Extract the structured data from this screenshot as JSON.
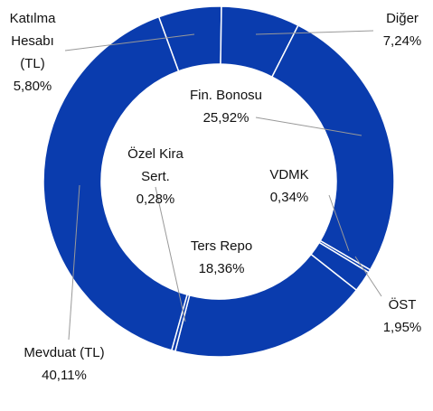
{
  "chart_data": {
    "type": "donut",
    "categories": [
      "Katılma Hesabı (TL)",
      "Diğer",
      "Fin. Bonosu",
      "Özel Kira Sert.",
      "ÖST",
      "Ters Repo",
      "VDMK",
      "Mevduat (TL)"
    ],
    "values": [
      5.8,
      7.24,
      25.92,
      0.28,
      1.95,
      18.36,
      0.34,
      40.11
    ],
    "value_labels": [
      "5,80%",
      "7,24%",
      "25,92%",
      "0,28%",
      "1,95%",
      "18,36%",
      "0,34%",
      "40,11%"
    ],
    "color": "#0a3cae"
  }
}
